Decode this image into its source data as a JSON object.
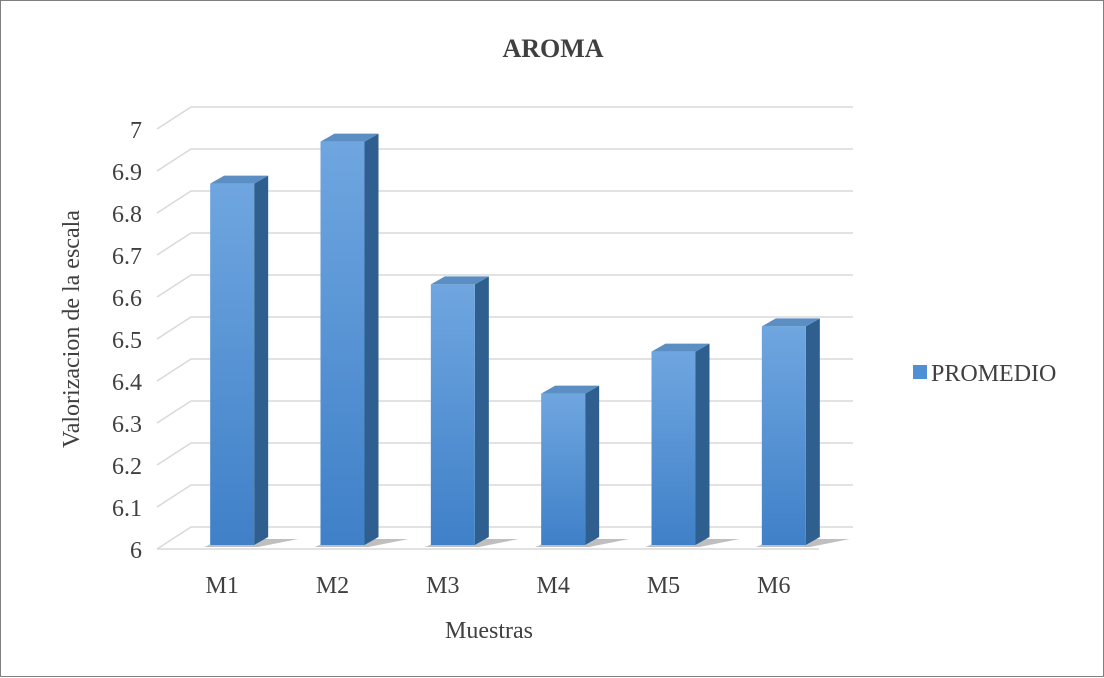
{
  "chart_data": {
    "type": "bar",
    "title": "AROMA",
    "xlabel": "Muestras",
    "ylabel": "Valorizacion de la escala",
    "categories": [
      "M1",
      "M2",
      "M3",
      "M4",
      "M5",
      "M6"
    ],
    "series": [
      {
        "name": "PROMEDIO",
        "values": [
          6.87,
          6.97,
          6.63,
          6.37,
          6.47,
          6.53
        ]
      }
    ],
    "ylim": [
      6,
      7
    ],
    "yticks": [
      "6",
      "6.1",
      "6.2",
      "6.3",
      "6.4",
      "6.5",
      "6.6",
      "6.7",
      "6.8",
      "6.9",
      "7"
    ],
    "grid": true,
    "legend": "right",
    "colors": {
      "bar_front": "#4f8fd6",
      "bar_side": "#2f5f8e",
      "bar_top": "#5b8fc4",
      "grid": "#d9d9d9",
      "text": "#404040"
    }
  }
}
